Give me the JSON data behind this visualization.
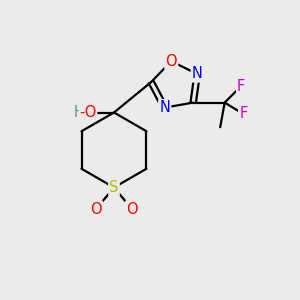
{
  "bg_color": "#ebebeb",
  "atom_colors": {
    "C": "#000000",
    "H": "#5f8f8f",
    "O": "#ff0000",
    "N": "#0000ee",
    "S": "#bbbb00",
    "F": "#cc00cc"
  },
  "figsize": [
    3.0,
    3.0
  ],
  "dpi": 100,
  "lw": 1.6,
  "fs": 10.5
}
